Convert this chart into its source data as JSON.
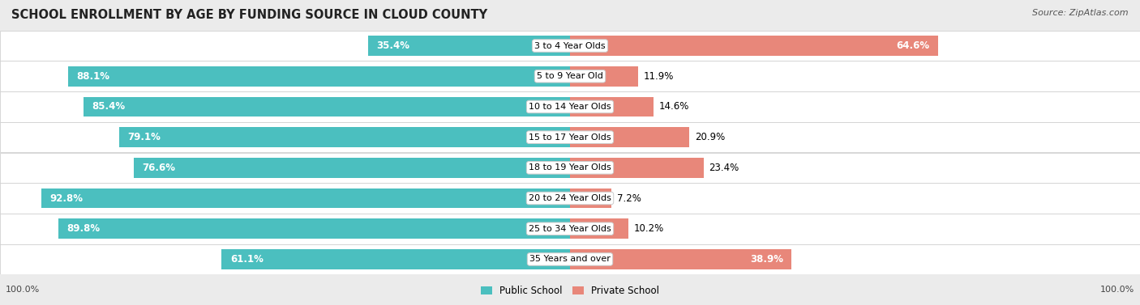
{
  "title": "SCHOOL ENROLLMENT BY AGE BY FUNDING SOURCE IN CLOUD COUNTY",
  "source": "Source: ZipAtlas.com",
  "categories": [
    "3 to 4 Year Olds",
    "5 to 9 Year Old",
    "10 to 14 Year Olds",
    "15 to 17 Year Olds",
    "18 to 19 Year Olds",
    "20 to 24 Year Olds",
    "25 to 34 Year Olds",
    "35 Years and over"
  ],
  "public_pct": [
    35.4,
    88.1,
    85.4,
    79.1,
    76.6,
    92.8,
    89.8,
    61.1
  ],
  "private_pct": [
    64.6,
    11.9,
    14.6,
    20.9,
    23.4,
    7.2,
    10.2,
    38.9
  ],
  "public_color": "#4bbfbf",
  "private_color": "#e8877a",
  "bg_color": "#ebebeb",
  "row_bg_even": "#f5f5f5",
  "row_bg_odd": "#ffffff",
  "axis_label_left": "100.0%",
  "axis_label_right": "100.0%",
  "legend_public": "Public School",
  "legend_private": "Private School",
  "title_fontsize": 10.5,
  "source_fontsize": 8,
  "bar_label_fontsize": 8.5,
  "cat_label_fontsize": 8,
  "legend_fontsize": 8.5,
  "axis_tick_fontsize": 8
}
